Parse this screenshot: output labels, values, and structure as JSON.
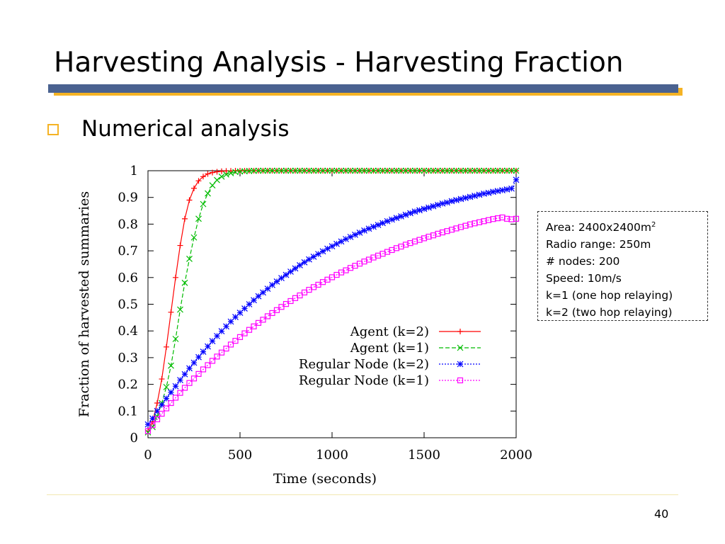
{
  "slide": {
    "title": "Harvesting Analysis - Harvesting Fraction",
    "bullet": "Numerical analysis",
    "page_number": "40",
    "colors": {
      "title_bar": "#4a6290",
      "accent_bar": "#f5b324",
      "bullet": "#f5b324"
    }
  },
  "info_box": {
    "lines": [
      {
        "text": "Area: 2400x2400m",
        "sup": "2"
      },
      {
        "text": "Radio range: 250m"
      },
      {
        "text": "# nodes: 200"
      },
      {
        "text": "Speed: 10m/s"
      },
      {
        "text": "k=1 (one hop relaying)"
      },
      {
        "text": "k=2 (two hop relaying)"
      }
    ]
  },
  "chart_data": {
    "type": "line",
    "title": "",
    "xlabel": "Time (seconds)",
    "ylabel": "Fraction of harvested summaries",
    "xlim": [
      0,
      2000
    ],
    "ylim": [
      0,
      1
    ],
    "xticks": [
      0,
      500,
      1000,
      1500,
      2000
    ],
    "yticks": [
      0,
      0.1,
      0.2,
      0.3,
      0.4,
      0.5,
      0.6,
      0.7,
      0.8,
      0.9,
      1
    ],
    "ytick_labels": [
      "0",
      "0.1",
      "0.2",
      "0.3",
      "0.4",
      "0.5",
      "0.6",
      "0.7",
      "0.8",
      "0.9",
      "1"
    ],
    "grid": false,
    "legend_position": "lower-right",
    "series": [
      {
        "name": "Agent (k=2)",
        "color": "#ff0000",
        "marker": "plus",
        "dash": "solid",
        "x": [
          0,
          25,
          50,
          75,
          100,
          125,
          150,
          175,
          200,
          225,
          250,
          275,
          300,
          325,
          350,
          375,
          400,
          425,
          450,
          475,
          500,
          525,
          550,
          575,
          600,
          625,
          650,
          675,
          700,
          725,
          750,
          775,
          800,
          825,
          850,
          875,
          900,
          925,
          950,
          975,
          1000,
          1025,
          1050,
          1075,
          1100,
          1125,
          1150,
          1175,
          1200,
          1225,
          1250,
          1275,
          1300,
          1325,
          1350,
          1375,
          1400,
          1425,
          1450,
          1475,
          1500,
          1525,
          1550,
          1575,
          1600,
          1625,
          1650,
          1675,
          1700,
          1725,
          1750,
          1775,
          1800,
          1825,
          1850,
          1875,
          1900,
          1925,
          1950,
          1975,
          2000
        ],
        "y": [
          0.025,
          0.06,
          0.13,
          0.22,
          0.34,
          0.47,
          0.6,
          0.72,
          0.82,
          0.89,
          0.934,
          0.962,
          0.978,
          0.988,
          0.993,
          0.996,
          0.998,
          0.999,
          0.9995,
          1,
          1,
          1,
          1,
          1,
          1,
          1,
          1,
          1,
          1,
          1,
          1,
          1,
          1,
          1,
          1,
          1,
          1,
          1,
          1,
          1,
          1,
          1,
          1,
          1,
          1,
          1,
          1,
          1,
          1,
          1,
          1,
          1,
          1,
          1,
          1,
          1,
          1,
          1,
          1,
          1,
          1,
          1,
          1,
          1,
          1,
          1,
          1,
          1,
          1,
          1,
          1,
          1,
          1,
          1,
          1,
          1,
          1,
          1,
          1,
          1,
          1
        ]
      },
      {
        "name": "Agent (k=1)",
        "color": "#00bb00",
        "marker": "cross",
        "dash": "dashed",
        "x": [
          0,
          25,
          50,
          75,
          100,
          125,
          150,
          175,
          200,
          225,
          250,
          275,
          300,
          325,
          350,
          375,
          400,
          425,
          450,
          475,
          500,
          525,
          550,
          575,
          600,
          625,
          650,
          675,
          700,
          725,
          750,
          775,
          800,
          825,
          850,
          875,
          900,
          925,
          950,
          975,
          1000,
          1025,
          1050,
          1075,
          1100,
          1125,
          1150,
          1175,
          1200,
          1225,
          1250,
          1275,
          1300,
          1325,
          1350,
          1375,
          1400,
          1425,
          1450,
          1475,
          1500,
          1525,
          1550,
          1575,
          1600,
          1625,
          1650,
          1675,
          1700,
          1725,
          1750,
          1775,
          1800,
          1825,
          1850,
          1875,
          1900,
          1925,
          1950,
          1975,
          2000
        ],
        "y": [
          0.02,
          0.04,
          0.08,
          0.13,
          0.19,
          0.27,
          0.37,
          0.48,
          0.58,
          0.67,
          0.75,
          0.82,
          0.875,
          0.915,
          0.945,
          0.965,
          0.978,
          0.986,
          0.991,
          0.995,
          0.997,
          0.998,
          0.999,
          0.9995,
          1,
          1,
          1,
          1,
          1,
          1,
          1,
          1,
          1,
          1,
          1,
          1,
          1,
          1,
          1,
          1,
          1,
          1,
          1,
          1,
          1,
          1,
          1,
          1,
          1,
          1,
          1,
          1,
          1,
          1,
          1,
          1,
          1,
          1,
          1,
          1,
          1,
          1,
          1,
          1,
          1,
          1,
          1,
          1,
          1,
          1,
          1,
          1,
          1,
          1,
          1,
          1,
          1,
          1,
          1,
          1,
          1
        ]
      },
      {
        "name": "Regular Node (k=2)",
        "color": "#0000ff",
        "marker": "star",
        "dash": "dotted",
        "x": [
          0,
          25,
          50,
          75,
          100,
          125,
          150,
          175,
          200,
          225,
          250,
          275,
          300,
          325,
          350,
          375,
          400,
          425,
          450,
          475,
          500,
          525,
          550,
          575,
          600,
          625,
          650,
          675,
          700,
          725,
          750,
          775,
          800,
          825,
          850,
          875,
          900,
          925,
          950,
          975,
          1000,
          1025,
          1050,
          1075,
          1100,
          1125,
          1150,
          1175,
          1200,
          1225,
          1250,
          1275,
          1300,
          1325,
          1350,
          1375,
          1400,
          1425,
          1450,
          1475,
          1500,
          1525,
          1550,
          1575,
          1600,
          1625,
          1650,
          1675,
          1700,
          1725,
          1750,
          1775,
          1800,
          1825,
          1850,
          1875,
          1900,
          1925,
          1950,
          1975,
          2000
        ],
        "y": [
          0.05,
          0.072,
          0.1,
          0.123,
          0.147,
          0.17,
          0.193,
          0.216,
          0.238,
          0.26,
          0.281,
          0.302,
          0.322,
          0.342,
          0.362,
          0.381,
          0.399,
          0.417,
          0.435,
          0.452,
          0.468,
          0.484,
          0.5,
          0.515,
          0.53,
          0.544,
          0.558,
          0.572,
          0.585,
          0.598,
          0.61,
          0.622,
          0.634,
          0.646,
          0.657,
          0.668,
          0.678,
          0.688,
          0.698,
          0.708,
          0.717,
          0.726,
          0.735,
          0.744,
          0.752,
          0.76,
          0.768,
          0.776,
          0.783,
          0.79,
          0.797,
          0.804,
          0.811,
          0.817,
          0.823,
          0.829,
          0.835,
          0.841,
          0.847,
          0.852,
          0.857,
          0.862,
          0.867,
          0.872,
          0.877,
          0.881,
          0.886,
          0.89,
          0.894,
          0.898,
          0.902,
          0.906,
          0.91,
          0.914,
          0.917,
          0.921,
          0.924,
          0.927,
          0.93,
          0.933,
          0.966
        ]
      },
      {
        "name": "Regular Node (k=1)",
        "color": "#ff00ff",
        "marker": "square",
        "dash": "dotted",
        "x": [
          0,
          25,
          50,
          75,
          100,
          125,
          150,
          175,
          200,
          225,
          250,
          275,
          300,
          325,
          350,
          375,
          400,
          425,
          450,
          475,
          500,
          525,
          550,
          575,
          600,
          625,
          650,
          675,
          700,
          725,
          750,
          775,
          800,
          825,
          850,
          875,
          900,
          925,
          950,
          975,
          1000,
          1025,
          1050,
          1075,
          1100,
          1125,
          1150,
          1175,
          1200,
          1225,
          1250,
          1275,
          1300,
          1325,
          1350,
          1375,
          1400,
          1425,
          1450,
          1475,
          1500,
          1525,
          1550,
          1575,
          1600,
          1625,
          1650,
          1675,
          1700,
          1725,
          1750,
          1775,
          1800,
          1825,
          1850,
          1875,
          1900,
          1925,
          1950,
          1975,
          2000
        ],
        "y": [
          0.025,
          0.047,
          0.069,
          0.09,
          0.11,
          0.13,
          0.15,
          0.168,
          0.187,
          0.205,
          0.222,
          0.239,
          0.256,
          0.272,
          0.288,
          0.304,
          0.319,
          0.334,
          0.349,
          0.363,
          0.377,
          0.391,
          0.404,
          0.417,
          0.43,
          0.442,
          0.455,
          0.467,
          0.478,
          0.49,
          0.501,
          0.512,
          0.523,
          0.533,
          0.544,
          0.554,
          0.564,
          0.573,
          0.583,
          0.592,
          0.601,
          0.61,
          0.619,
          0.627,
          0.636,
          0.644,
          0.652,
          0.66,
          0.667,
          0.675,
          0.682,
          0.689,
          0.696,
          0.703,
          0.71,
          0.716,
          0.723,
          0.729,
          0.735,
          0.741,
          0.747,
          0.753,
          0.758,
          0.764,
          0.769,
          0.774,
          0.779,
          0.784,
          0.789,
          0.794,
          0.799,
          0.803,
          0.807,
          0.811,
          0.815,
          0.819,
          0.822,
          0.825,
          0.82,
          0.818,
          0.82
        ]
      }
    ]
  }
}
